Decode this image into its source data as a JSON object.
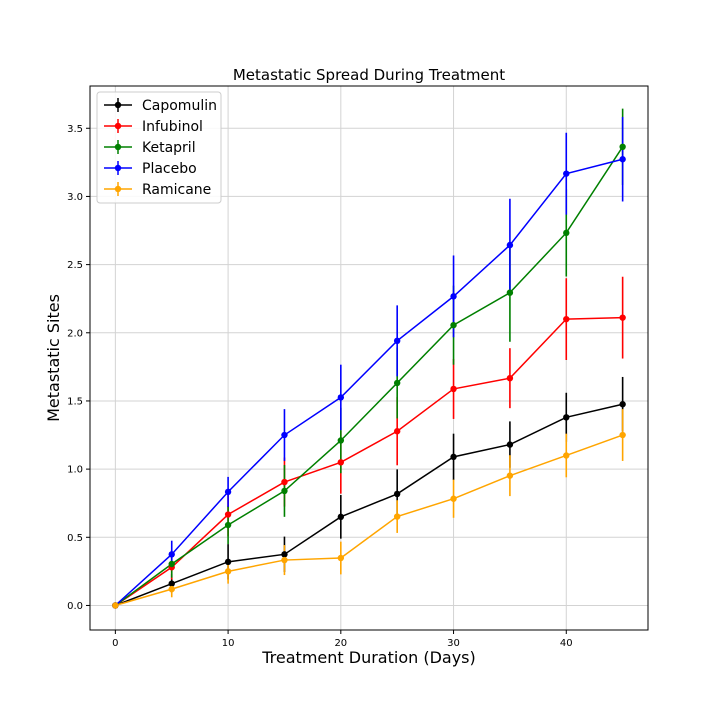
{
  "chart_data": {
    "type": "line",
    "title": "Metastatic Spread During Treatment",
    "xlabel": "Treatment Duration (Days)",
    "ylabel": "Metastatic Sites",
    "xlim": [
      -2.25,
      47.25
    ],
    "ylim": [
      -0.18,
      3.81
    ],
    "xticks": [
      0,
      10,
      20,
      30,
      40
    ],
    "yticks": [
      0.0,
      0.5,
      1.0,
      1.5,
      2.0,
      2.5,
      3.0,
      3.5
    ],
    "grid": true,
    "legend_position": "top-left",
    "x": [
      0,
      5,
      10,
      15,
      20,
      25,
      30,
      35,
      40,
      45
    ],
    "series": [
      {
        "name": "Capomulin",
        "color": "#000000",
        "values": [
          0.0,
          0.16,
          0.32,
          0.375,
          0.65,
          0.818,
          1.09,
          1.18,
          1.38,
          1.476
        ],
        "errors": [
          0.0,
          0.07,
          0.13,
          0.13,
          0.16,
          0.18,
          0.17,
          0.17,
          0.18,
          0.2
        ]
      },
      {
        "name": "Infubinol",
        "color": "#ff0000",
        "values": [
          0.0,
          0.28,
          0.667,
          0.905,
          1.05,
          1.278,
          1.588,
          1.667,
          2.1,
          2.111
        ],
        "errors": [
          0.0,
          0.09,
          0.16,
          0.18,
          0.23,
          0.25,
          0.22,
          0.22,
          0.3,
          0.3
        ]
      },
      {
        "name": "Ketapril",
        "color": "#008000",
        "values": [
          0.0,
          0.304,
          0.59,
          0.84,
          1.21,
          1.632,
          2.056,
          2.294,
          2.733,
          3.364
        ],
        "errors": [
          0.0,
          0.1,
          0.14,
          0.19,
          0.24,
          0.26,
          0.29,
          0.36,
          0.32,
          0.28
        ]
      },
      {
        "name": "Placebo",
        "color": "#0000ff",
        "values": [
          0.0,
          0.375,
          0.833,
          1.25,
          1.526,
          1.941,
          2.267,
          2.643,
          3.167,
          3.273
        ],
        "errors": [
          0.0,
          0.1,
          0.11,
          0.19,
          0.24,
          0.26,
          0.3,
          0.34,
          0.3,
          0.31
        ]
      },
      {
        "name": "Ramicane",
        "color": "#ffa500",
        "values": [
          0.0,
          0.12,
          0.25,
          0.333,
          0.348,
          0.652,
          0.783,
          0.952,
          1.1,
          1.25
        ],
        "errors": [
          0.0,
          0.06,
          0.09,
          0.11,
          0.12,
          0.12,
          0.14,
          0.15,
          0.16,
          0.19
        ]
      }
    ]
  }
}
